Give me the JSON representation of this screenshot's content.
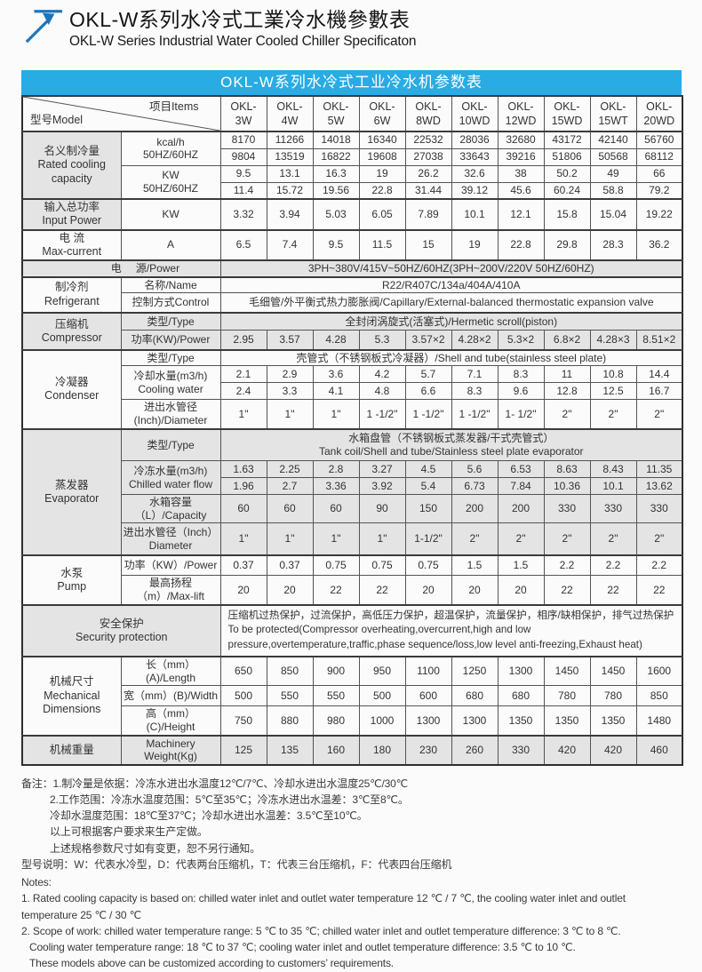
{
  "page": {
    "title_cn": "OKL-W系列水冷式工業冷水機參數表",
    "title_en": "OKL-W Series Industrial Water Cooled Chiller Specificaton"
  },
  "colors": {
    "accent": "#29abe3",
    "logo_blue": "#1b75bc",
    "row_shade": "#e4e4e4"
  },
  "table": {
    "banner": "OKL-W系列水冷式工业冷水机参数表",
    "corner": {
      "model": "型号Model",
      "items": "项目Items"
    },
    "rows": [
      {
        "cls": "h40 sec",
        "name": "header-row",
        "cells": [
          {
            "corner": true,
            "cs": 2,
            "cls": "corner",
            "name": "corner-cell"
          },
          {
            "lines": [
              "OKL-",
              "3W"
            ],
            "cls": "mh",
            "name": "model-okl-3w"
          },
          {
            "lines": [
              "OKL-",
              "4W"
            ],
            "cls": "mh",
            "name": "model-okl-4w"
          },
          {
            "lines": [
              "OKL-",
              "5W"
            ],
            "cls": "mh",
            "name": "model-okl-5w"
          },
          {
            "lines": [
              "OKL-",
              "6W"
            ],
            "cls": "mh",
            "name": "model-okl-6w"
          },
          {
            "lines": [
              "OKL-",
              "8WD"
            ],
            "cls": "mh",
            "name": "model-okl-8wd"
          },
          {
            "lines": [
              "OKL-",
              "10WD"
            ],
            "cls": "mh",
            "name": "model-okl-10wd"
          },
          {
            "lines": [
              "OKL-",
              "12WD"
            ],
            "cls": "mh",
            "name": "model-okl-12wd"
          },
          {
            "lines": [
              "OKL-",
              "15WD"
            ],
            "cls": "mh",
            "name": "model-okl-15wd"
          },
          {
            "lines": [
              "OKL-",
              "15WT"
            ],
            "cls": "mh",
            "name": "model-okl-15wt"
          },
          {
            "lines": [
              "OKL-",
              "20WD"
            ],
            "cls": "mh",
            "name": "model-okl-20wd"
          }
        ]
      },
      {
        "cls": "h19 sec",
        "name": "row-kcal-50hz",
        "cells": [
          {
            "lines": [
              "名义制冷量",
              "Rated cooling",
              "capacity"
            ],
            "rs": 4,
            "cls": "cat g",
            "name": "cat-rated-cooling-capacity"
          },
          {
            "lines": [
              "kcal/h",
              "50HZ/60HZ"
            ],
            "rs": 2,
            "name": "label-kcal"
          }
        ],
        "vals": [
          "8170",
          "11266",
          "14018",
          "16340",
          "22532",
          "28036",
          "32680",
          "43172",
          "42140",
          "56760"
        ]
      },
      {
        "cls": "h19",
        "name": "row-kcal-60hz",
        "vals": [
          "9804",
          "13519",
          "16822",
          "19608",
          "27038",
          "33643",
          "39216",
          "51806",
          "50568",
          "68112"
        ]
      },
      {
        "cls": "h19",
        "name": "row-kw-50hz",
        "cells": [
          {
            "lines": [
              "KW",
              "50HZ/60HZ"
            ],
            "rs": 2,
            "name": "label-kw"
          }
        ],
        "vals": [
          "9.5",
          "13.1",
          "16.3",
          "19",
          "26.2",
          "32.6",
          "38",
          "50.2",
          "49",
          "66"
        ]
      },
      {
        "cls": "h19",
        "name": "row-kw-60hz",
        "vals": [
          "11.4",
          "15.72",
          "19.56",
          "22.8",
          "31.44",
          "39.12",
          "45.6",
          "60.24",
          "58.8",
          "79.2"
        ]
      },
      {
        "cls": "h28 sec",
        "name": "row-input-power",
        "cells": [
          {
            "lines": [
              "输入总功率",
              "Input Power"
            ],
            "cls": "cat g",
            "name": "cat-input-power"
          },
          {
            "t": "KW",
            "name": "label-kw-unit"
          }
        ],
        "vals": [
          "3.32",
          "3.94",
          "5.03",
          "6.05",
          "7.89",
          "10.1",
          "12.1",
          "15.8",
          "15.04",
          "19.22"
        ]
      },
      {
        "cls": "h28 sec",
        "name": "row-max-current",
        "cells": [
          {
            "lines": [
              "电 流",
              "Max-current"
            ],
            "cls": "cat",
            "name": "cat-max-current"
          },
          {
            "t": "A",
            "name": "label-ampere"
          }
        ],
        "vals": [
          "6.5",
          "7.4",
          "9.5",
          "11.5",
          "15",
          "19",
          "22.8",
          "29.8",
          "28.3",
          "36.2"
        ]
      },
      {
        "cls": "h18 sec",
        "name": "row-power-source",
        "cells": [
          {
            "pair": [
              "电",
              "源/Power"
            ],
            "cs": 2,
            "cls": "g",
            "name": "label-power-source"
          },
          {
            "t": "3PH~380V/415V~50HZ/60HZ(3PH~200V/220V  50HZ/60HZ)",
            "cs": 10,
            "cls": "g",
            "name": "val-power-source"
          }
        ]
      },
      {
        "cls": "h18 sec",
        "name": "row-refrigerant-name",
        "cells": [
          {
            "lines": [
              "制冷剂",
              "Refrigerant"
            ],
            "rs": 2,
            "cls": "cat",
            "name": "cat-refrigerant"
          },
          {
            "t": "名称/Name",
            "name": "label-name"
          },
          {
            "t": "R22/R407C/134a/404A/410A",
            "cs": 10,
            "name": "val-refrigerant-name"
          }
        ]
      },
      {
        "cls": "h22",
        "name": "row-refrigerant-control",
        "cells": [
          {
            "t": "控制方式Control",
            "name": "label-control"
          },
          {
            "t": "毛细管/外平衡式热力膨胀阀/Capillary/External-balanced thermostatic expansion valve",
            "cs": 10,
            "name": "val-control"
          }
        ]
      },
      {
        "cls": "h20 sec",
        "name": "row-compressor-type",
        "cells": [
          {
            "lines": [
              "压缩机",
              "Compressor"
            ],
            "rs": 2,
            "cls": "cat g",
            "name": "cat-compressor"
          },
          {
            "t": "类型/Type",
            "cls": "g",
            "name": "label-compressor-type"
          },
          {
            "t": "全封闭涡旋式(活塞式)/Hermetic scroll(piston)",
            "cs": 10,
            "cls": "g",
            "name": "val-compressor-type"
          }
        ]
      },
      {
        "cls": "h22",
        "name": "row-compressor-power",
        "cells": [
          {
            "t": "功率(KW)/Power",
            "cls": "g",
            "name": "label-compressor-power"
          }
        ],
        "vcls": "g",
        "vals": [
          "2.95",
          "3.57",
          "4.28",
          "5.3",
          "3.57×2",
          "4.28×2",
          "5.3×2",
          "6.8×2",
          "4.28×3",
          "8.51×2"
        ]
      },
      {
        "cls": "h18 sec",
        "name": "row-condenser-type",
        "cells": [
          {
            "lines": [
              "冷凝器",
              "Condenser"
            ],
            "rs": 4,
            "cls": "cat",
            "name": "cat-condenser"
          },
          {
            "t": "类型/Type",
            "name": "label-condenser-type"
          },
          {
            "t": "壳管式（不锈钢板式冷凝器）/Shell and tube(stainless steel plate)",
            "cs": 10,
            "name": "val-condenser-type"
          }
        ]
      },
      {
        "cls": "h19",
        "name": "row-cooling-water-50hz",
        "cells": [
          {
            "lines": [
              "冷却水量(m3/h)",
              "Cooling water"
            ],
            "rs": 2,
            "name": "label-cooling-water"
          }
        ],
        "vals": [
          "2.1",
          "2.9",
          "3.6",
          "4.2",
          "5.7",
          "7.1",
          "8.3",
          "11",
          "10.8",
          "14.4"
        ]
      },
      {
        "cls": "h19",
        "name": "row-cooling-water-60hz",
        "vals": [
          "2.4",
          "3.3",
          "4.1",
          "4.8",
          "6.6",
          "8.3",
          "9.6",
          "12.8",
          "12.5",
          "16.7"
        ]
      },
      {
        "cls": "h28",
        "name": "row-condenser-pipe",
        "cells": [
          {
            "lines": [
              "进出水管径",
              "(Inch)/Diameter"
            ],
            "name": "label-condenser-pipe"
          }
        ],
        "vals": [
          "1\"",
          "1\"",
          "1\"",
          "1 -1/2\"",
          "1 -1/2\"",
          "1 -1/2\"",
          "1- 1/2\"",
          "2\"",
          "2\"",
          "2\""
        ]
      },
      {
        "cls": "h36 sec",
        "name": "row-evaporator-type",
        "cells": [
          {
            "lines": [
              "蒸发器",
              "Evaporator"
            ],
            "rs": 5,
            "cls": "cat g",
            "name": "cat-evaporator"
          },
          {
            "t": "类型/Type",
            "cls": "g",
            "name": "label-evaporator-type"
          },
          {
            "lines": [
              "水箱盘管（不锈钢板式蒸发器/干式壳管式）",
              "Tank coil/Shell and tube/Stainless steel plate evaporator"
            ],
            "cs": 10,
            "cls": "g",
            "name": "val-evaporator-type"
          }
        ]
      },
      {
        "cls": "h19",
        "name": "row-chilled-water-50hz",
        "cells": [
          {
            "lines": [
              "冷冻水量(m3/h)",
              "Chilled water flow"
            ],
            "rs": 2,
            "cls": "g",
            "name": "label-chilled-water"
          }
        ],
        "vcls": "g",
        "vals": [
          "1.63",
          "2.25",
          "2.8",
          "3.27",
          "4.5",
          "5.6",
          "6.53",
          "8.63",
          "8.43",
          "11.35"
        ]
      },
      {
        "cls": "h19",
        "name": "row-chilled-water-60hz",
        "vcls": "g",
        "vals": [
          "1.96",
          "2.7",
          "3.36",
          "3.92",
          "5.4",
          "6.73",
          "7.84",
          "10.36",
          "10.1",
          "13.62"
        ]
      },
      {
        "cls": "h25",
        "name": "row-tank-capacity",
        "cells": [
          {
            "t": "水箱容量（L）/Capacity",
            "cls": "g",
            "name": "label-tank-capacity"
          }
        ],
        "vcls": "g",
        "vals": [
          "60",
          "60",
          "60",
          "90",
          "150",
          "200",
          "200",
          "330",
          "330",
          "330"
        ]
      },
      {
        "cls": "h36",
        "name": "row-evaporator-pipe",
        "cells": [
          {
            "lines": [
              "进出水管径（Inch）",
              "Diameter"
            ],
            "cls": "g",
            "name": "label-evaporator-pipe"
          }
        ],
        "vcls": "g",
        "vals": [
          "1\"",
          "1\"",
          "1\"",
          "1\"",
          "1-1/2\"",
          "2\"",
          "2\"",
          "2\"",
          "2\"",
          "2\""
        ]
      },
      {
        "cls": "h23 sec",
        "name": "row-pump-power",
        "cells": [
          {
            "lines": [
              "水泵",
              "Pump"
            ],
            "rs": 2,
            "cls": "cat",
            "name": "cat-pump"
          },
          {
            "t": "功率（KW）/Power",
            "name": "label-pump-power"
          }
        ],
        "vals": [
          "0.37",
          "0.37",
          "0.75",
          "0.75",
          "0.75",
          "1.5",
          "1.5",
          "2.2",
          "2.2",
          "2.2"
        ]
      },
      {
        "cls": "h23",
        "name": "row-max-lift",
        "cells": [
          {
            "t": "最高扬程（m）/Max-lift",
            "name": "label-max-lift"
          }
        ],
        "vals": [
          "20",
          "20",
          "22",
          "22",
          "20",
          "20",
          "20",
          "22",
          "22",
          "22"
        ]
      },
      {
        "cls": "h46 sec",
        "name": "row-security-protection",
        "cells": [
          {
            "lines": [
              "安全保护",
              "Security protection"
            ],
            "cs": 2,
            "cls": "g cat",
            "name": "cat-security-protection"
          },
          {
            "lines": [
              "压缩机过热保护，过流保护，高低压力保护，超温保护，流量保护，相序/缺相保护，排气过热保护",
              "To be protected(Compressor overheating,overcurrent,high and low",
              "pressure,overtemperature,traffic,phase sequence/loss,low level anti-freezing,Exhaust heat)"
            ],
            "cs": 10,
            "cls": "tal",
            "name": "val-security-protection"
          }
        ]
      },
      {
        "cls": "h23 sec",
        "name": "row-length",
        "cells": [
          {
            "lines": [
              "机械尺寸",
              "Mechanical",
              "Dimensions"
            ],
            "rs": 3,
            "cls": "cat",
            "name": "cat-mechanical-dimensions"
          },
          {
            "t": "长（mm）(A)/Length",
            "name": "label-length"
          }
        ],
        "vals": [
          "650",
          "850",
          "900",
          "950",
          "1100",
          "1250",
          "1300",
          "1450",
          "1450",
          "1600"
        ]
      },
      {
        "cls": "h23",
        "name": "row-width",
        "cells": [
          {
            "t": "宽（mm）(B)/Width",
            "name": "label-width"
          }
        ],
        "vals": [
          "500",
          "550",
          "550",
          "500",
          "600",
          "680",
          "680",
          "780",
          "780",
          "850"
        ]
      },
      {
        "cls": "h23",
        "name": "row-height",
        "cells": [
          {
            "t": "高（mm）(C)/Height",
            "name": "label-height"
          }
        ],
        "vals": [
          "750",
          "880",
          "980",
          "1000",
          "1300",
          "1300",
          "1350",
          "1350",
          "1350",
          "1480"
        ]
      },
      {
        "cls": "h23 sec",
        "name": "row-weight",
        "cells": [
          {
            "t": "机械重量",
            "cls": "cat g",
            "name": "cat-machinery-weight"
          },
          {
            "t": "Machinery Weight(Kg)",
            "cls": "g",
            "name": "label-machinery-weight"
          }
        ],
        "vcls": "g",
        "vals": [
          "125",
          "135",
          "160",
          "180",
          "230",
          "260",
          "330",
          "420",
          "420",
          "460"
        ]
      }
    ]
  },
  "notes_cn": [
    {
      "t": "备注：1.制冷量是依据：冷冻水进出水温度12℃/7℃、冷却水进出水温度25℃/30℃",
      "ind": 0
    },
    {
      "t": "2.工作范围：冷冻水温度范围：5℃至35℃；冷冻水进出水温差：3℃至8℃。",
      "ind": 1
    },
    {
      "t": "冷却水温度范围：18℃至37℃；冷却水进出水温差：3.5℃至10℃。",
      "ind": 1
    },
    {
      "t": "以上可根据客户要求来生产定做。",
      "ind": 1
    },
    {
      "t": "上述规格参数尺寸如有变更，恕不另行通知。",
      "ind": 1
    },
    {
      "t": "型号说明：W：代表水冷型，D：代表两台压缩机，T：代表三台压缩机，F：代表四台压缩机",
      "ind": 0
    }
  ],
  "notes_en": [
    {
      "t": "Notes:",
      "ind": 0
    },
    {
      "t": "1. Rated cooling capacity is based on: chilled water inlet and outlet water temperature 12 ℃ / 7 ℃, the cooling water inlet and outlet",
      "ind": 0
    },
    {
      "t": "temperature  25 ℃ / 30 ℃",
      "ind": 0
    },
    {
      "t": "2. Scope of work: chilled water temperature range: 5 ℃ to 35 ℃; chilled water inlet and outlet temperature difference: 3 ℃ to 8 ℃.",
      "ind": 0
    },
    {
      "t": "Cooling water temperature range: 18 ℃ to 37 ℃; cooling water inlet and outlet temperature difference: 3.5 ℃ to 10 ℃.",
      "ind": 2
    },
    {
      "t": "These models above can be customized according to customers’  requirements.",
      "ind": 2
    }
  ]
}
